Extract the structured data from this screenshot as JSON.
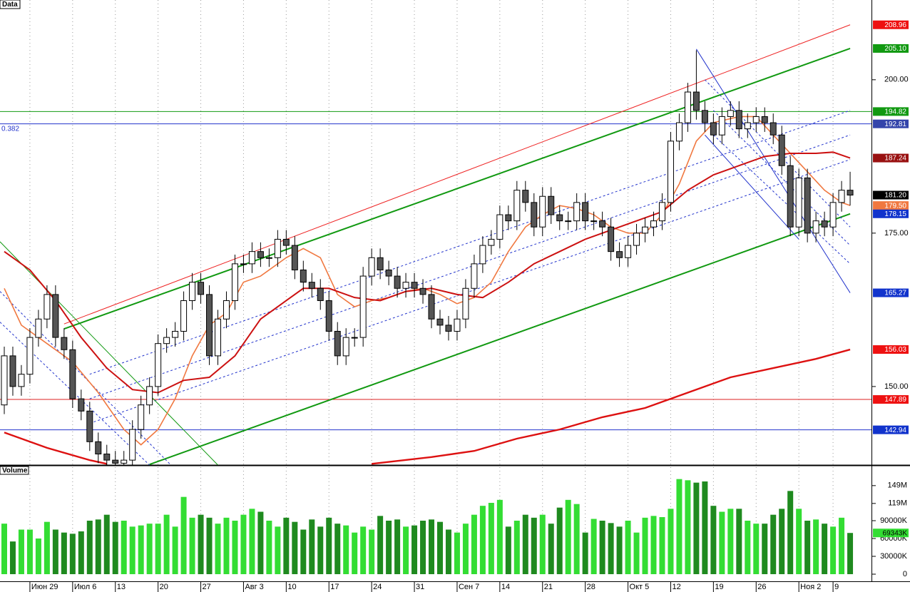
{
  "chart_data": {
    "type": "candlestick",
    "panel_title": "Data",
    "xlim": [
      -0.5,
      101.5
    ],
    "xticks": [
      {
        "value": 3,
        "label": "Июн 29"
      },
      {
        "value": 8,
        "label": "Июл 6"
      },
      {
        "value": 13,
        "label": "13"
      },
      {
        "value": 18,
        "label": "20"
      },
      {
        "value": 23,
        "label": "27"
      },
      {
        "value": 28,
        "label": "Авг 3"
      },
      {
        "value": 33,
        "label": "10"
      },
      {
        "value": 38,
        "label": "17"
      },
      {
        "value": 43,
        "label": "24"
      },
      {
        "value": 48,
        "label": "31"
      },
      {
        "value": 53,
        "label": "Сен 7"
      },
      {
        "value": 58,
        "label": "14"
      },
      {
        "value": 63,
        "label": "21"
      },
      {
        "value": 68,
        "label": "28"
      },
      {
        "value": 73,
        "label": "Окт 5"
      },
      {
        "value": 78,
        "label": "12"
      },
      {
        "value": 83,
        "label": "19"
      },
      {
        "value": 88,
        "label": "26"
      },
      {
        "value": 93,
        "label": "Ноя 2"
      },
      {
        "value": 97,
        "label": "9"
      }
    ],
    "ylim": [
      137.2,
      213
    ],
    "yticks": [
      {
        "value": 150,
        "label": "150.00"
      },
      {
        "value": 175,
        "label": "175.00"
      },
      {
        "value": 200,
        "label": "200.00"
      }
    ],
    "grid": true,
    "up_color": "#ffffff",
    "down_color": "#555555",
    "open": [
      147,
      155,
      150,
      152,
      158,
      161,
      165,
      158,
      156,
      148,
      146,
      141,
      139,
      138,
      137.5,
      138,
      143,
      147,
      150,
      157,
      158,
      159,
      164,
      167,
      165,
      155,
      161,
      164,
      170,
      170,
      172,
      171,
      171,
      174,
      173,
      169,
      167,
      166,
      164,
      159,
      155,
      158,
      158,
      168,
      171,
      169,
      168,
      166,
      167,
      166,
      165,
      161,
      160,
      159,
      161,
      166,
      170,
      173,
      174,
      178,
      177,
      182,
      180,
      176,
      181,
      178,
      177,
      177,
      180,
      177,
      177,
      176,
      172,
      171,
      173,
      175,
      176,
      177,
      180,
      190,
      193,
      198,
      195,
      193,
      191,
      194,
      195,
      192,
      193,
      194,
      193,
      191,
      186,
      176,
      184,
      175,
      177,
      176,
      180,
      182
    ],
    "high": [
      156.5,
      156.5,
      153.5,
      159.5,
      162.5,
      166.5,
      166.5,
      159.5,
      157.5,
      149.5,
      147.5,
      142.5,
      140.5,
      139.5,
      139.5,
      144.5,
      148.5,
      151.5,
      158.5,
      159.5,
      160.5,
      165.5,
      168.5,
      168.5,
      166.5,
      162.5,
      165.5,
      171.5,
      171.5,
      173.5,
      173.5,
      172.5,
      175.5,
      175.5,
      174.5,
      170.5,
      168.5,
      167.5,
      165.5,
      160.5,
      159.5,
      159.5,
      169.5,
      172.5,
      172.5,
      170.5,
      169.5,
      168.5,
      168.5,
      167.5,
      166.5,
      162.5,
      161.5,
      162.5,
      167.5,
      171.5,
      174.5,
      175.5,
      179.5,
      179.5,
      183.5,
      183.5,
      181.5,
      182.5,
      182.5,
      179.5,
      178.5,
      181.5,
      181.5,
      178.5,
      178.5,
      177.5,
      173.5,
      174.5,
      176.5,
      177.5,
      178.5,
      181.5,
      191.5,
      194.5,
      199.5,
      204.8,
      196.5,
      194.5,
      195.5,
      196.5,
      196.5,
      194.5,
      195.5,
      195.5,
      194.5,
      192.5,
      187.5,
      185.5,
      185.5,
      178.5,
      178.5,
      181.5,
      183.5,
      185
    ],
    "low": [
      145.5,
      148.5,
      148.5,
      150.5,
      156.5,
      159.5,
      156.5,
      154.5,
      146.5,
      144.5,
      139.5,
      137.5,
      136.5,
      136,
      136,
      136.5,
      141.5,
      145.5,
      148.5,
      155.5,
      156.5,
      157.5,
      162.5,
      163.5,
      153.5,
      153.5,
      159.5,
      162.5,
      168.5,
      168.5,
      169.5,
      169.5,
      169.5,
      171.5,
      167.5,
      165.5,
      164.5,
      162.5,
      157.5,
      153.5,
      153.5,
      156.5,
      156.5,
      166.5,
      167.5,
      166.5,
      164.5,
      164.5,
      164.5,
      163.5,
      159.5,
      158.5,
      157.5,
      157.5,
      159.5,
      164.5,
      168.5,
      171.5,
      172.5,
      175.5,
      175.5,
      178.5,
      174.5,
      174.5,
      176.5,
      175.5,
      175.5,
      175.5,
      175.5,
      175.5,
      174.5,
      170.5,
      169.5,
      169.5,
      171.5,
      173.5,
      174.5,
      175.5,
      178.5,
      188.5,
      191.5,
      193.5,
      191.5,
      189.5,
      189.5,
      192.5,
      190.5,
      190.5,
      191.5,
      191.5,
      189.5,
      184.5,
      174.5,
      174.5,
      173.5,
      173.5,
      174.5,
      174.5,
      178.5,
      179.5
    ],
    "close": [
      155,
      150,
      152,
      158,
      161,
      165,
      158,
      156,
      148,
      146,
      141,
      139,
      138,
      137.5,
      138,
      143,
      147,
      150,
      157,
      158,
      159,
      164,
      167,
      165,
      155,
      161,
      164,
      170,
      170,
      172,
      171,
      171,
      174,
      173,
      169,
      167,
      166,
      164,
      159,
      155,
      158,
      158,
      168,
      171,
      169,
      168,
      166,
      167,
      166,
      165,
      161,
      160,
      159,
      161,
      166,
      170,
      173,
      174,
      178,
      177,
      182,
      180,
      176,
      181,
      178,
      177,
      177,
      180,
      177,
      177,
      176,
      172,
      171,
      173,
      175,
      176,
      177,
      180,
      190,
      193,
      198,
      195,
      193,
      191,
      194,
      195,
      192,
      193,
      194,
      193,
      191,
      186,
      176,
      184,
      175,
      177,
      176,
      180,
      182,
      181.2
    ],
    "moving_averages": [
      {
        "color": "#f07840",
        "width": 1.6,
        "x": [
          0,
          2,
          5,
          8,
          11,
          14,
          16,
          18,
          20,
          22,
          24,
          26,
          28,
          30,
          33,
          35,
          37,
          39,
          41,
          43,
          45,
          47,
          49,
          51,
          53,
          55,
          57,
          59,
          61,
          63,
          65,
          67,
          69,
          71,
          73,
          75,
          77,
          79,
          81,
          83,
          86,
          88,
          90,
          92,
          94,
          96,
          98,
          99
        ],
        "values": [
          166,
          160,
          157,
          154,
          149,
          143,
          140.5,
          143,
          148,
          155,
          160,
          162,
          167,
          168,
          171,
          172.5,
          171,
          165,
          163,
          164,
          164.5,
          165.5,
          166,
          165,
          163.5,
          164.5,
          167,
          172,
          176,
          178,
          179.5,
          179,
          178,
          176,
          175,
          175,
          178,
          183,
          190,
          193,
          194,
          194,
          191,
          188,
          185,
          182,
          180,
          179.5
        ]
      },
      {
        "color": "#cc1111",
        "width": 2,
        "x": [
          0,
          3,
          6,
          9,
          12,
          15,
          18,
          21,
          24,
          27,
          30,
          33,
          35,
          38,
          41,
          44,
          47,
          50,
          53,
          56,
          59,
          62,
          65,
          68,
          71,
          74,
          77,
          80,
          83,
          86,
          89,
          92,
          95,
          97,
          99
        ],
        "values": [
          172,
          169,
          164,
          158,
          153,
          149.5,
          149,
          151,
          151.5,
          155,
          161,
          164,
          166,
          166,
          164.5,
          164,
          165.5,
          166,
          165,
          164.5,
          167,
          170,
          172,
          174,
          175.5,
          177,
          178.5,
          182,
          184.5,
          186,
          187.5,
          188,
          188,
          188.2,
          187.24
        ]
      },
      {
        "color": "#dd1111",
        "width": 2.4,
        "x": [
          0,
          5,
          10,
          12,
          27,
          43,
          50,
          55,
          60,
          65,
          70,
          75,
          80,
          85,
          90,
          95,
          99
        ],
        "values": [
          142.5,
          140,
          138,
          137.4,
          null,
          137.4,
          138.5,
          139.5,
          141.5,
          143,
          145,
          146.5,
          149,
          151.5,
          153,
          154.5,
          156.03
        ]
      }
    ],
    "lines": [
      {
        "color": "#ee2222",
        "width": 1,
        "dash": false,
        "x": [
          7,
          99
        ],
        "values": [
          160.2,
          208.96
        ]
      },
      {
        "color": "#119911",
        "width": 2,
        "dash": false,
        "x": [
          7,
          99
        ],
        "values": [
          159.4,
          205.1
        ]
      },
      {
        "color": "#119911",
        "width": 2,
        "dash": false,
        "x": [
          17,
          99
        ],
        "values": [
          137.3,
          178.15
        ]
      },
      {
        "color": "#2233cc",
        "width": 1,
        "dash": true,
        "x": [
          10,
          99
        ],
        "values": [
          152,
          195
        ]
      },
      {
        "color": "#2233cc",
        "width": 1,
        "dash": true,
        "x": [
          10,
          99
        ],
        "values": [
          148,
          191
        ]
      },
      {
        "color": "#2233cc",
        "width": 1,
        "dash": true,
        "x": [
          10,
          99
        ],
        "values": [
          144,
          187
        ]
      },
      {
        "color": "#2233cc",
        "width": 1,
        "dash": false,
        "x": [
          81,
          99
        ],
        "values": [
          205,
          165.27
        ]
      },
      {
        "color": "#2233cc",
        "width": 1,
        "dash": false,
        "x": [
          82,
          93
        ],
        "values": [
          191,
          174
        ]
      },
      {
        "color": "#2233cc",
        "width": 1,
        "dash": true,
        "x": [
          82,
          99
        ],
        "values": [
          200,
          176
        ]
      },
      {
        "color": "#2233cc",
        "width": 1,
        "dash": true,
        "x": [
          83,
          99
        ],
        "values": [
          195,
          173
        ]
      },
      {
        "color": "#2233cc",
        "width": 1,
        "dash": true,
        "x": [
          83,
          99
        ],
        "values": [
          191,
          170
        ]
      },
      {
        "color": "#119911",
        "width": 1,
        "dash": false,
        "x": [
          -0.5,
          25
        ],
        "values": [
          173.6,
          137.2
        ]
      },
      {
        "color": "#2233cc",
        "width": 1,
        "dash": true,
        "x": [
          -0.5,
          19.5
        ],
        "values": [
          165.5,
          137.2
        ]
      },
      {
        "color": "#2233cc",
        "width": 1,
        "dash": true,
        "x": [
          -0.5,
          17
        ],
        "values": [
          160.5,
          137.2
        ]
      }
    ],
    "hlines": [
      {
        "color": "#119911",
        "value": 194.82
      },
      {
        "color": "#2233cc",
        "value": 192.81,
        "label": "0.382"
      },
      {
        "color": "#dd2222",
        "value": 147.89
      },
      {
        "color": "#2233cc",
        "value": 142.94
      }
    ],
    "price_labels": [
      {
        "value": 208.96,
        "label": "208.96",
        "color": "#ee1111"
      },
      {
        "value": 205.1,
        "label": "205.10",
        "color": "#119911"
      },
      {
        "value": 194.82,
        "label": "194.82",
        "color": "#119911"
      },
      {
        "value": 192.81,
        "label": "192.81",
        "color": "#3344aa"
      },
      {
        "value": 187.24,
        "label": "187.24",
        "color": "#991111"
      },
      {
        "value": 181.2,
        "label": "181.20",
        "color": "#000000"
      },
      {
        "value": 179.5,
        "label": "179.50",
        "color": "#f07840"
      },
      {
        "value": 178.15,
        "label": "178.15",
        "color": "#1133cc"
      },
      {
        "value": 165.27,
        "label": "165.27",
        "color": "#1133cc"
      },
      {
        "value": 156.03,
        "label": "156.03",
        "color": "#ee1111"
      },
      {
        "value": 147.89,
        "label": "147.89",
        "color": "#ee1111"
      },
      {
        "value": 142.94,
        "label": "142.94",
        "color": "#1133cc"
      }
    ],
    "volume": {
      "title": "Volume",
      "ylim": [
        0,
        180000000
      ],
      "yticks": [
        0,
        {
          "value": 30000000,
          "label": "30000K"
        },
        {
          "value": 60000000,
          "label": "60000K"
        },
        {
          "value": 90000000,
          "label": "90000K"
        },
        {
          "value": 119000000,
          "label": "119M"
        },
        {
          "value": 149000000,
          "label": "149M"
        }
      ],
      "up_color": "#33dd33",
      "down_color": "#1f8a1f",
      "values": [
        85000000,
        55000000,
        75000000,
        75000000,
        60000000,
        88000000,
        75000000,
        70000000,
        68000000,
        72000000,
        90000000,
        92000000,
        100000000,
        88000000,
        90000000,
        80000000,
        82000000,
        85000000,
        85000000,
        100000000,
        80000000,
        130000000,
        95000000,
        100000000,
        95000000,
        85000000,
        95000000,
        90000000,
        100000000,
        110000000,
        105000000,
        90000000,
        80000000,
        95000000,
        88000000,
        75000000,
        92000000,
        80000000,
        95000000,
        85000000,
        82000000,
        70000000,
        80000000,
        75000000,
        98000000,
        90000000,
        92000000,
        80000000,
        82000000,
        90000000,
        92000000,
        88000000,
        75000000,
        70000000,
        85000000,
        100000000,
        115000000,
        120000000,
        125000000,
        80000000,
        90000000,
        100000000,
        95000000,
        100000000,
        85000000,
        112000000,
        125000000,
        118000000,
        70000000,
        93000000,
        90000000,
        86000000,
        80000000,
        90000000,
        70000000,
        95000000,
        98000000,
        96000000,
        110000000,
        160000000,
        158000000,
        154000000,
        156000000,
        115000000,
        105000000,
        110000000,
        110000000,
        90000000,
        85000000,
        85000000,
        100000000,
        110000000,
        140000000,
        110000000,
        90000000,
        92000000,
        85000000,
        80000000,
        95000000,
        69343000
      ],
      "last_label": {
        "value": 69343000,
        "label": "69343K",
        "color": "#33dd33"
      }
    }
  }
}
